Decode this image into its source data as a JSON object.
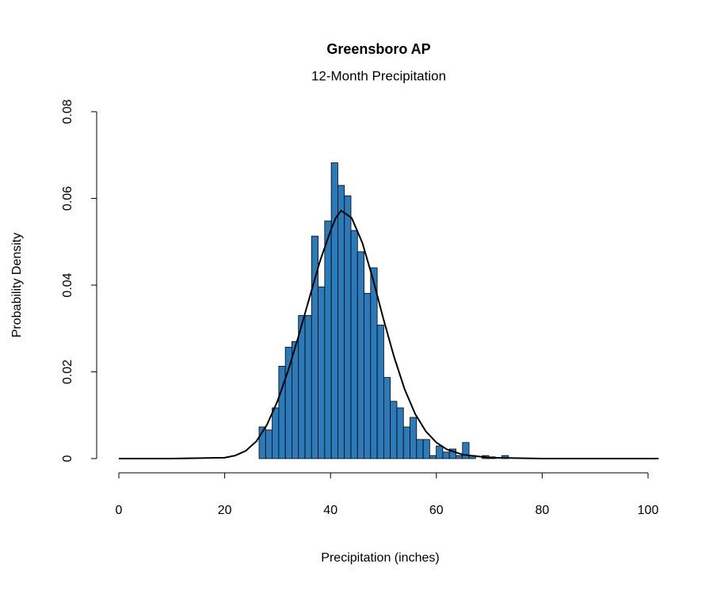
{
  "chart_data": {
    "type": "histogram",
    "title": "Greensboro  AP",
    "subtitle": "12-Month Precipitation",
    "xlabel": "Precipitation (inches)",
    "ylabel": "Probability Density",
    "bins": [
      26.5,
      27.74,
      28.98,
      30.22,
      31.46,
      32.7,
      33.94,
      35.18,
      36.42,
      37.66,
      38.9,
      40.14,
      41.38,
      42.62,
      43.86,
      45.1,
      46.34,
      47.58,
      48.82,
      50.06,
      51.3,
      52.54,
      53.78,
      55.02,
      56.26,
      57.5,
      58.74,
      59.98,
      61.22,
      62.46,
      63.7,
      64.94,
      66.18,
      67.42,
      68.66,
      69.9,
      71.14,
      72.38,
      73.62
    ],
    "values": [
      0.0073,
      0.0066,
      0.0117,
      0.0213,
      0.0257,
      0.027,
      0.033,
      0.033,
      0.0513,
      0.0396,
      0.0548,
      0.0682,
      0.063,
      0.0606,
      0.0526,
      0.0477,
      0.0381,
      0.044,
      0.0308,
      0.0187,
      0.0132,
      0.0117,
      0.0073,
      0.0095,
      0.0044,
      0.0044,
      0.0007,
      0.0029,
      0.0015,
      0.0022,
      0.0007,
      0.0037,
      0.0007,
      0,
      0.0007,
      0.0004,
      0,
      0.0007
    ],
    "color": "#2b7bba",
    "curve": {
      "color": "#000000",
      "x": [
        0,
        10,
        20,
        22,
        24,
        26,
        28,
        30,
        32,
        34,
        36,
        38,
        40,
        41,
        42,
        44,
        46,
        48,
        50,
        52,
        54,
        56,
        58,
        60,
        62,
        65,
        70,
        80,
        90,
        102
      ],
      "y": [
        0,
        0,
        0.0002,
        0.0007,
        0.0018,
        0.004,
        0.0078,
        0.0133,
        0.0203,
        0.0284,
        0.037,
        0.0455,
        0.0525,
        0.0555,
        0.0572,
        0.0555,
        0.0498,
        0.0415,
        0.0322,
        0.0235,
        0.016,
        0.0103,
        0.0063,
        0.0037,
        0.0021,
        0.0009,
        0.0002,
        0,
        0,
        0
      ]
    },
    "xlim": [
      0,
      100
    ],
    "xticks": [
      0,
      20,
      40,
      60,
      80,
      100
    ],
    "ylim": [
      0,
      0.08
    ],
    "yticks": [
      0,
      0.02,
      0.04,
      0.06,
      0.08
    ]
  }
}
